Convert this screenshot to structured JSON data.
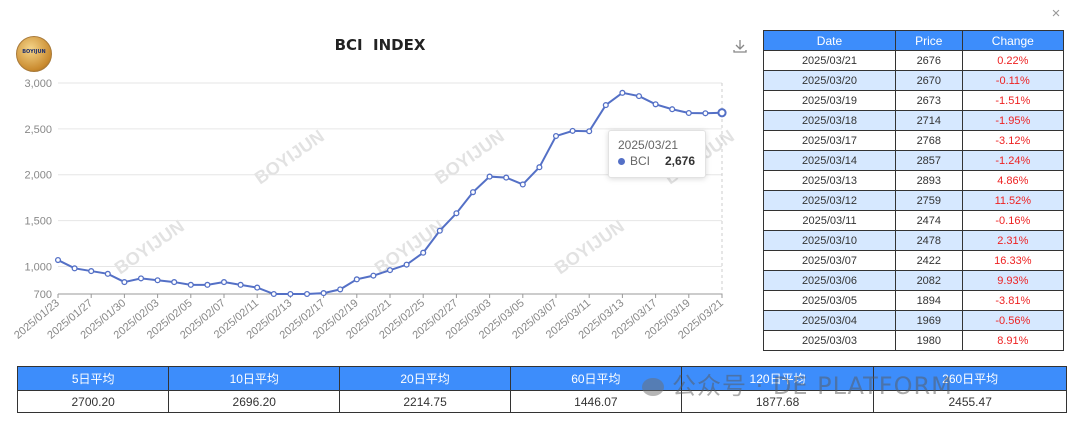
{
  "window": {
    "close_icon": "×"
  },
  "logo": {
    "text": "BOYIJUN"
  },
  "download_icon": "download-icon",
  "watermark": "BOYIJUN",
  "chart_data": {
    "type": "line",
    "title": "BCI  INDEX",
    "series_name": "BCI",
    "color": "#5470c6",
    "ylim": [
      700,
      3000
    ],
    "yticks": [
      700,
      1000,
      1500,
      2000,
      2500,
      3000
    ],
    "ytick_labels": [
      "700",
      "1,000",
      "1,500",
      "2,000",
      "2,500",
      "3,000"
    ],
    "x": [
      "2025/01/23",
      "2025/01/24",
      "2025/01/27",
      "2025/01/28",
      "2025/01/30",
      "2025/01/31",
      "2025/02/03",
      "2025/02/04",
      "2025/02/05",
      "2025/02/06",
      "2025/02/07",
      "2025/02/10",
      "2025/02/11",
      "2025/02/12",
      "2025/02/13",
      "2025/02/14",
      "2025/02/17",
      "2025/02/18",
      "2025/02/19",
      "2025/02/20",
      "2025/02/21",
      "2025/02/24",
      "2025/02/25",
      "2025/02/26",
      "2025/02/27",
      "2025/02/28",
      "2025/03/03",
      "2025/03/04",
      "2025/03/05",
      "2025/03/06",
      "2025/03/07",
      "2025/03/10",
      "2025/03/11",
      "2025/03/12",
      "2025/03/13",
      "2025/03/14",
      "2025/03/17",
      "2025/03/18",
      "2025/03/19",
      "2025/03/20",
      "2025/03/21"
    ],
    "values": [
      1070,
      980,
      950,
      920,
      830,
      870,
      850,
      830,
      800,
      800,
      830,
      800,
      770,
      700,
      700,
      700,
      710,
      750,
      860,
      900,
      960,
      1020,
      1150,
      1390,
      1580,
      1810,
      1980,
      1969,
      1894,
      2082,
      2422,
      2478,
      2474,
      2759,
      2893,
      2857,
      2768,
      2714,
      2673,
      2670,
      2676
    ],
    "xtick_labels": [
      "2025/01/23",
      "2025/01/27",
      "2025/01/30",
      "2025/02/03",
      "2025/02/05",
      "2025/02/07",
      "2025/02/11",
      "2025/02/13",
      "2025/02/17",
      "2025/02/19",
      "2025/02/21",
      "2025/02/25",
      "2025/02/27",
      "2025/03/03",
      "2025/03/05",
      "2025/03/07",
      "2025/03/11",
      "2025/03/13",
      "2025/03/17",
      "2025/03/19",
      "2025/03/21"
    ],
    "tooltip": {
      "date": "2025/03/21",
      "name": "BCI",
      "value": "2,676"
    },
    "grid": true
  },
  "side_table": {
    "headers": [
      "Date",
      "Price",
      "Change"
    ],
    "rows": [
      [
        "2025/03/21",
        "2676",
        "0.22%"
      ],
      [
        "2025/03/20",
        "2670",
        "-0.11%"
      ],
      [
        "2025/03/19",
        "2673",
        "-1.51%"
      ],
      [
        "2025/03/18",
        "2714",
        "-1.95%"
      ],
      [
        "2025/03/17",
        "2768",
        "-3.12%"
      ],
      [
        "2025/03/14",
        "2857",
        "-1.24%"
      ],
      [
        "2025/03/13",
        "2893",
        "4.86%"
      ],
      [
        "2025/03/12",
        "2759",
        "11.52%"
      ],
      [
        "2025/03/11",
        "2474",
        "-0.16%"
      ],
      [
        "2025/03/10",
        "2478",
        "2.31%"
      ],
      [
        "2025/03/07",
        "2422",
        "16.33%"
      ],
      [
        "2025/03/06",
        "2082",
        "9.93%"
      ],
      [
        "2025/03/05",
        "1894",
        "-3.81%"
      ],
      [
        "2025/03/04",
        "1969",
        "-0.56%"
      ],
      [
        "2025/03/03",
        "1980",
        "8.91%"
      ]
    ]
  },
  "averages": {
    "headers": [
      "5日平均",
      "10日平均",
      "20日平均",
      "60日平均",
      "120日平均",
      "260日平均"
    ],
    "values": [
      "2700.20",
      "2696.20",
      "2214.75",
      "1446.07",
      "1877.68",
      "2455.47"
    ]
  },
  "overlay_watermark": "公众号 · DE PLATFORM"
}
